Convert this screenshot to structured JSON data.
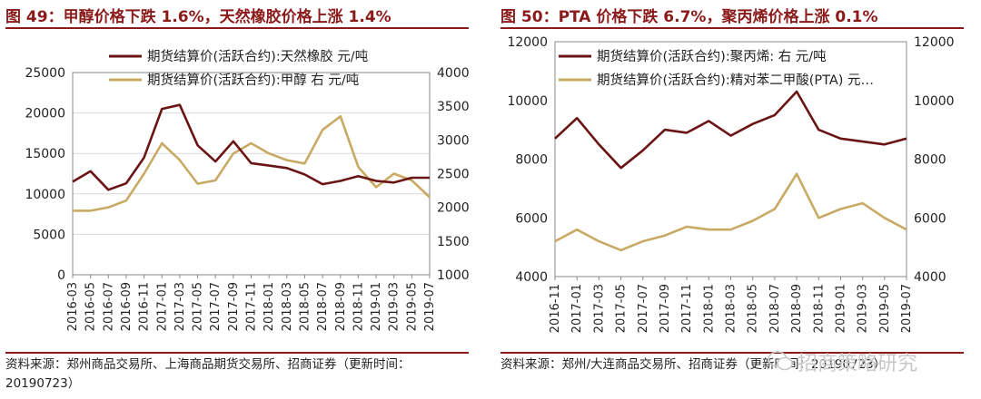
{
  "colors": {
    "dark": "#6b1414",
    "gold": "#c8aa64",
    "title": "#8b1a1a",
    "axis": "#888888",
    "grid": "#d9d9d9"
  },
  "panels": [
    {
      "title": "图 49：甲醇价格下跌 1.6%，天然橡胶价格上涨 1.4%",
      "source": "资料来源：郑州商品交易所、上海商品期货交易所、招商证券（更新时间：20190723）"
    },
    {
      "title": "图 50：PTA 价格下跌 6.7%，聚丙烯价格上涨 0.1%",
      "source": "资料来源：郑州/大连商品交易所、招商证券（更新时间：20190723）"
    }
  ],
  "watermark": "招商策略研究",
  "chart_data": [
    {
      "type": "line",
      "categories": [
        "2016-03",
        "2016-05",
        "2016-07",
        "2016-09",
        "2016-11",
        "2017-01",
        "2017-03",
        "2017-05",
        "2017-07",
        "2017-09",
        "2017-11",
        "2018-01",
        "2018-03",
        "2018-05",
        "2018-07",
        "2018-09",
        "2018-11",
        "2019-01",
        "2019-03",
        "2019-05",
        "2019-07"
      ],
      "y_left": {
        "min": 0,
        "max": 25000,
        "ticks": [
          0,
          5000,
          10000,
          15000,
          20000,
          25000
        ]
      },
      "y_right": {
        "min": 1000,
        "max": 4000,
        "ticks": [
          1000,
          1500,
          2000,
          2500,
          3000,
          3500,
          4000
        ]
      },
      "grid": true,
      "legend_position": "top",
      "series": [
        {
          "name": "期货结算价(活跃合约):天然橡胶  元/吨",
          "axis": "left",
          "color": "#6b1414",
          "values": [
            11500,
            12800,
            10500,
            11300,
            14500,
            20500,
            21000,
            16000,
            14000,
            16500,
            13800,
            13500,
            13200,
            12400,
            11200,
            11600,
            12200,
            11600,
            11400,
            12000,
            12000
          ]
        },
        {
          "name": "期货结算价(活跃合约):甲醇  右  元/吨",
          "axis": "right",
          "color": "#c8aa64",
          "values": [
            1950,
            1950,
            2000,
            2100,
            2500,
            2950,
            2700,
            2350,
            2400,
            2800,
            2950,
            2800,
            2700,
            2650,
            3150,
            3350,
            2600,
            2300,
            2500,
            2400,
            2150
          ]
        }
      ]
    },
    {
      "type": "line",
      "categories": [
        "2016-11",
        "2017-01",
        "2017-03",
        "2017-05",
        "2017-07",
        "2017-09",
        "2017-11",
        "2018-01",
        "2018-03",
        "2018-05",
        "2018-07",
        "2018-09",
        "2018-11",
        "2019-01",
        "2019-03",
        "2019-05",
        "2019-07"
      ],
      "y_left": {
        "min": 4000,
        "max": 12000,
        "ticks": [
          4000,
          6000,
          8000,
          10000,
          12000
        ]
      },
      "y_right": {
        "min": 4000,
        "max": 12000,
        "ticks": [
          4000,
          6000,
          8000,
          10000,
          12000
        ]
      },
      "grid": false,
      "legend_position": "top",
      "series": [
        {
          "name": "期货结算价(活跃合约):聚丙烯:  右  元/吨",
          "axis": "right",
          "color": "#6b1414",
          "values": [
            8700,
            9400,
            8500,
            7700,
            8300,
            9000,
            8900,
            9300,
            8800,
            9200,
            9500,
            10300,
            9000,
            8700,
            8600,
            8500,
            8700
          ]
        },
        {
          "name": "期货结算价(活跃合约):精对苯二甲酸(PTA)  元…",
          "axis": "left",
          "color": "#c8aa64",
          "values": [
            5200,
            5600,
            5200,
            4900,
            5200,
            5400,
            5700,
            5600,
            5600,
            5900,
            6300,
            7500,
            6000,
            6300,
            6500,
            6000,
            5600
          ]
        }
      ]
    }
  ]
}
